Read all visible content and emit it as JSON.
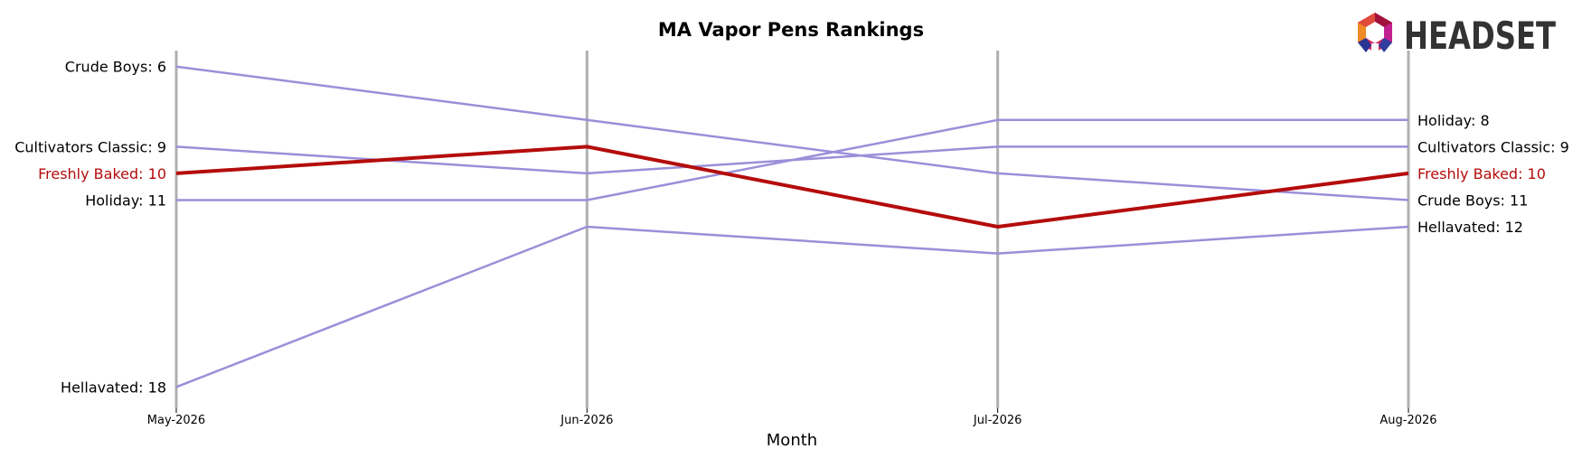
{
  "chart_data": {
    "type": "line",
    "title": "MA Vapor Pens Rankings",
    "xlabel": "Month",
    "ylabel": "",
    "x": [
      "May-2026",
      "Jun-2026",
      "Jul-2026",
      "Aug-2026"
    ],
    "y_inverted": true,
    "ylim": [
      5.4,
      18.8
    ],
    "grid": false,
    "highlight_series": "Freshly Baked",
    "series": [
      {
        "name": "Crude Boys",
        "values": [
          6,
          8,
          10,
          11
        ],
        "start_label": "Crude Boys: 6",
        "end_label": "Crude Boys: 11"
      },
      {
        "name": "Cultivators Classic",
        "values": [
          9,
          10,
          9,
          9
        ],
        "start_label": "Cultivators Classic: 9",
        "end_label": "Cultivators Classic: 9"
      },
      {
        "name": "Freshly Baked",
        "values": [
          10,
          9,
          12,
          10
        ],
        "start_label": "Freshly Baked: 10",
        "end_label": "Freshly Baked: 10"
      },
      {
        "name": "Holiday",
        "values": [
          11,
          11,
          8,
          8
        ],
        "start_label": "Holiday: 11",
        "end_label": "Holiday: 8"
      },
      {
        "name": "Hellavated",
        "values": [
          18,
          12,
          13,
          12
        ],
        "start_label": "Hellavated: 18",
        "end_label": "Hellavated: 12"
      }
    ]
  },
  "colors": {
    "series_line": "#9b8fd9",
    "highlight_line": "#b40c0c",
    "highlight_text": "#b40c0c",
    "axis_line": "#b0b0b0"
  },
  "logo": {
    "text": "HEADSET",
    "icon": "headset-logo-icon"
  }
}
